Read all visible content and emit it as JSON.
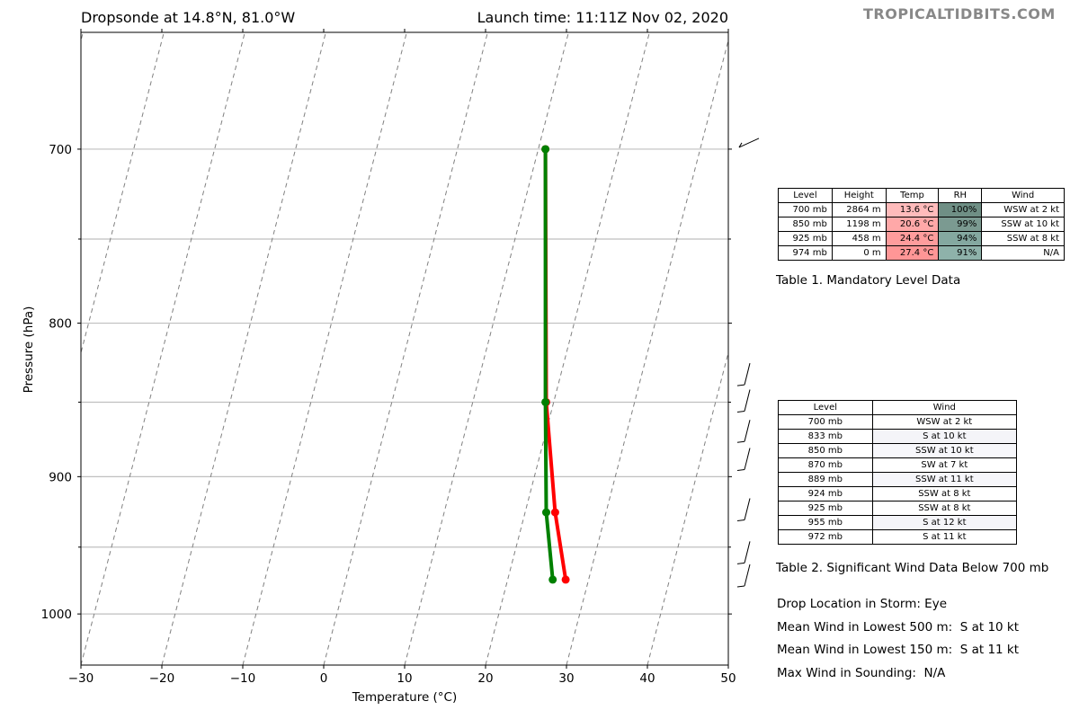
{
  "header": {
    "title_left": "Dropsonde at 14.8°N, 81.0°W",
    "title_right": "Launch time: 11:11Z Nov 02, 2020",
    "brand": "TROPICALTIDBITS.COM"
  },
  "chart_data": {
    "type": "line",
    "xlabel": "Temperature (°C)",
    "ylabel": "Pressure (hPa)",
    "xlim": [
      -30,
      50
    ],
    "ylim": [
      1040,
      640
    ],
    "y_scale": "log",
    "x_ticks": [
      "−30",
      "−20",
      "−10",
      "0",
      "10",
      "20",
      "30",
      "40",
      "50"
    ],
    "y_ticks": [
      "700",
      "800",
      "900",
      "1000"
    ],
    "grid_pressures": [
      700,
      750,
      800,
      850,
      900,
      950,
      1000
    ],
    "series": [
      {
        "color": "#ff0000",
        "points": [
          [
            27.4,
            700
          ],
          [
            27.5,
            850
          ],
          [
            28.6,
            925
          ],
          [
            29.9,
            974
          ]
        ]
      },
      {
        "color": "#008000",
        "points": [
          [
            27.4,
            700
          ],
          [
            27.4,
            850
          ],
          [
            27.5,
            925
          ],
          [
            28.3,
            974
          ]
        ]
      }
    ],
    "wind_barb_pressures": [
      700,
      833,
      850,
      870,
      889,
      924,
      955,
      972
    ]
  },
  "table1": {
    "headers": [
      "Level",
      "Height",
      "Temp",
      "RH",
      "Wind"
    ],
    "rows": [
      [
        "700 mb",
        "2864 m",
        "13.6 °C",
        "100%",
        "WSW at 2 kt"
      ],
      [
        "850 mb",
        "1198 m",
        "20.6 °C",
        "99%",
        "SSW at 10 kt"
      ],
      [
        "925 mb",
        "458 m",
        "24.4 °C",
        "94%",
        "SSW at 8 kt"
      ],
      [
        "974 mb",
        "0 m",
        "27.4 °C",
        "91%",
        "N/A"
      ]
    ],
    "temp_colors": [
      "#ffbbbb",
      "#ffa8a8",
      "#ff9c9c",
      "#ff9696"
    ],
    "rh_colors": [
      "#6f8f85",
      "#7b9a91",
      "#84a8a0",
      "#8eb2aa"
    ],
    "caption": "Table 1. Mandatory Level Data"
  },
  "table2": {
    "headers": [
      "Level",
      "Wind"
    ],
    "rows": [
      [
        "700 mb",
        "WSW at 2 kt"
      ],
      [
        "833 mb",
        "S at 10 kt"
      ],
      [
        "850 mb",
        "SSW at 10 kt"
      ],
      [
        "870 mb",
        "SW at 7 kt"
      ],
      [
        "889 mb",
        "SSW at 11 kt"
      ],
      [
        "924 mb",
        "SSW at 8 kt"
      ],
      [
        "925 mb",
        "SSW at 8 kt"
      ],
      [
        "955 mb",
        "S at 12 kt"
      ],
      [
        "972 mb",
        "S at 11 kt"
      ]
    ],
    "row_colors": [
      "#ffffff",
      "#f4f4f8",
      "#f7f7fb",
      "#ffffff",
      "#f6f6fa",
      "#ffffff",
      "#ffffff",
      "#f5f5f9",
      "#ffffff"
    ],
    "caption": "Table 2. Significant Wind Data Below 700 mb"
  },
  "info": {
    "drop_location": "Drop Location in Storm: Eye",
    "mean_wind_500": "Mean Wind in Lowest 500 m:  S at 10 kt",
    "mean_wind_150": "Mean Wind in Lowest 150 m:  S at 11 kt",
    "max_wind": "Max Wind in Sounding:  N/A"
  }
}
